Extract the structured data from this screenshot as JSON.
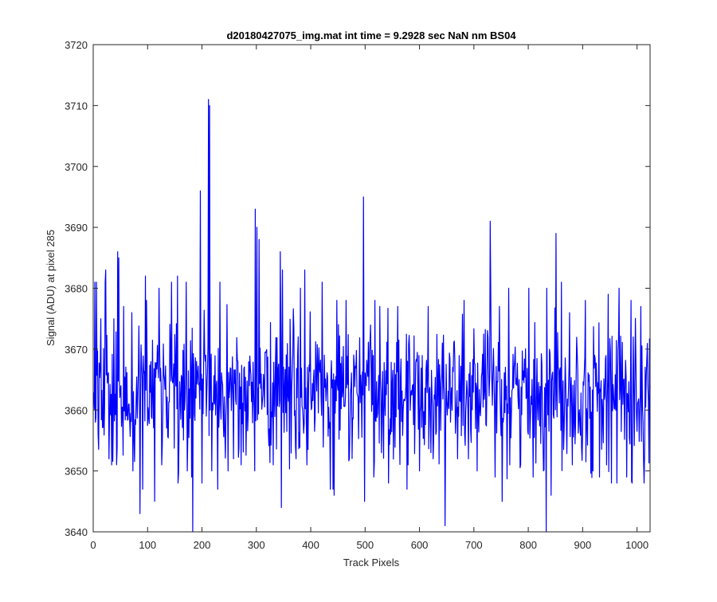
{
  "chart_data": {
    "type": "line",
    "title": "d20180427075_img.mat int time = 9.2928 sec  NaN nm BS04",
    "xlabel": "Track Pixels",
    "ylabel": "Signal (ADU) at pixel 285",
    "xlim": [
      0,
      1024
    ],
    "ylim": [
      3640,
      3720
    ],
    "xticks": [
      0,
      100,
      200,
      300,
      400,
      500,
      600,
      700,
      800,
      900,
      1000
    ],
    "yticks": [
      3640,
      3650,
      3660,
      3670,
      3680,
      3690,
      3700,
      3710,
      3720
    ],
    "grid": false,
    "series_color": "#0000ff",
    "series": [
      {
        "n_points": 1024,
        "base_level": 3663,
        "noise_sd": 5.5,
        "peaks": [
          {
            "x": 2,
            "y": 3681
          },
          {
            "x": 5,
            "y": 3681
          },
          {
            "x": 13,
            "y": 3675
          },
          {
            "x": 21,
            "y": 3681
          },
          {
            "x": 22,
            "y": 3683
          },
          {
            "x": 37,
            "y": 3675
          },
          {
            "x": 44,
            "y": 3686
          },
          {
            "x": 46,
            "y": 3685
          },
          {
            "x": 55,
            "y": 3677
          },
          {
            "x": 70,
            "y": 3676
          },
          {
            "x": 95,
            "y": 3682
          },
          {
            "x": 97,
            "y": 3678
          },
          {
            "x": 120,
            "y": 3680
          },
          {
            "x": 143,
            "y": 3681
          },
          {
            "x": 154,
            "y": 3682
          },
          {
            "x": 170,
            "y": 3681
          },
          {
            "x": 196,
            "y": 3696
          },
          {
            "x": 211,
            "y": 3711
          },
          {
            "x": 213,
            "y": 3710
          },
          {
            "x": 232,
            "y": 3681
          },
          {
            "x": 297,
            "y": 3693
          },
          {
            "x": 300,
            "y": 3690
          },
          {
            "x": 304,
            "y": 3688
          },
          {
            "x": 343,
            "y": 3686
          },
          {
            "x": 347,
            "y": 3683
          },
          {
            "x": 380,
            "y": 3680
          },
          {
            "x": 388,
            "y": 3683
          },
          {
            "x": 420,
            "y": 3681
          },
          {
            "x": 435,
            "y": 3679
          },
          {
            "x": 447,
            "y": 3678
          },
          {
            "x": 464,
            "y": 3678
          },
          {
            "x": 496,
            "y": 3695
          },
          {
            "x": 517,
            "y": 3678
          },
          {
            "x": 526,
            "y": 3677
          },
          {
            "x": 559,
            "y": 3677
          },
          {
            "x": 599,
            "y": 3678
          },
          {
            "x": 615,
            "y": 3677
          },
          {
            "x": 669,
            "y": 3686
          },
          {
            "x": 681,
            "y": 3678
          },
          {
            "x": 729,
            "y": 3691
          },
          {
            "x": 746,
            "y": 3677
          },
          {
            "x": 763,
            "y": 3680
          },
          {
            "x": 800,
            "y": 3680
          },
          {
            "x": 833,
            "y": 3680
          },
          {
            "x": 850,
            "y": 3689
          },
          {
            "x": 860,
            "y": 3681
          },
          {
            "x": 875,
            "y": 3676
          },
          {
            "x": 904,
            "y": 3678
          },
          {
            "x": 946,
            "y": 3679
          },
          {
            "x": 966,
            "y": 3680
          },
          {
            "x": 988,
            "y": 3678
          },
          {
            "x": 1006,
            "y": 3677
          }
        ],
        "troughs": [
          {
            "x": 3,
            "y": 3658
          },
          {
            "x": 8,
            "y": 3656
          },
          {
            "x": 28,
            "y": 3652
          },
          {
            "x": 33,
            "y": 3651
          },
          {
            "x": 72,
            "y": 3650
          },
          {
            "x": 85,
            "y": 3643
          },
          {
            "x": 90,
            "y": 3647
          },
          {
            "x": 112,
            "y": 3645
          },
          {
            "x": 125,
            "y": 3651
          },
          {
            "x": 155,
            "y": 3648
          },
          {
            "x": 172,
            "y": 3650
          },
          {
            "x": 180,
            "y": 3649
          },
          {
            "x": 182,
            "y": 3640
          },
          {
            "x": 199,
            "y": 3648
          },
          {
            "x": 217,
            "y": 3650
          },
          {
            "x": 228,
            "y": 3647
          },
          {
            "x": 247,
            "y": 3650
          },
          {
            "x": 257,
            "y": 3652
          },
          {
            "x": 271,
            "y": 3651
          },
          {
            "x": 296,
            "y": 3650
          },
          {
            "x": 330,
            "y": 3651
          },
          {
            "x": 345,
            "y": 3644
          },
          {
            "x": 372,
            "y": 3652
          },
          {
            "x": 392,
            "y": 3651
          },
          {
            "x": 435,
            "y": 3647
          },
          {
            "x": 440,
            "y": 3647
          },
          {
            "x": 442,
            "y": 3646
          },
          {
            "x": 470,
            "y": 3652
          },
          {
            "x": 498,
            "y": 3645
          },
          {
            "x": 515,
            "y": 3649
          },
          {
            "x": 529,
            "y": 3653
          },
          {
            "x": 542,
            "y": 3648
          },
          {
            "x": 578,
            "y": 3651
          },
          {
            "x": 599,
            "y": 3650
          },
          {
            "x": 620,
            "y": 3653
          },
          {
            "x": 646,
            "y": 3641
          },
          {
            "x": 669,
            "y": 3652
          },
          {
            "x": 689,
            "y": 3652
          },
          {
            "x": 705,
            "y": 3650
          },
          {
            "x": 738,
            "y": 3649
          },
          {
            "x": 751,
            "y": 3645
          },
          {
            "x": 765,
            "y": 3651
          },
          {
            "x": 785,
            "y": 3651
          },
          {
            "x": 808,
            "y": 3649
          },
          {
            "x": 827,
            "y": 3650
          },
          {
            "x": 832,
            "y": 3640
          },
          {
            "x": 841,
            "y": 3646
          },
          {
            "x": 880,
            "y": 3651
          },
          {
            "x": 918,
            "y": 3650
          },
          {
            "x": 930,
            "y": 3649
          },
          {
            "x": 943,
            "y": 3651
          },
          {
            "x": 952,
            "y": 3648
          },
          {
            "x": 962,
            "y": 3648
          },
          {
            "x": 980,
            "y": 3649
          },
          {
            "x": 990,
            "y": 3648
          },
          {
            "x": 1012,
            "y": 3648
          }
        ]
      }
    ]
  }
}
